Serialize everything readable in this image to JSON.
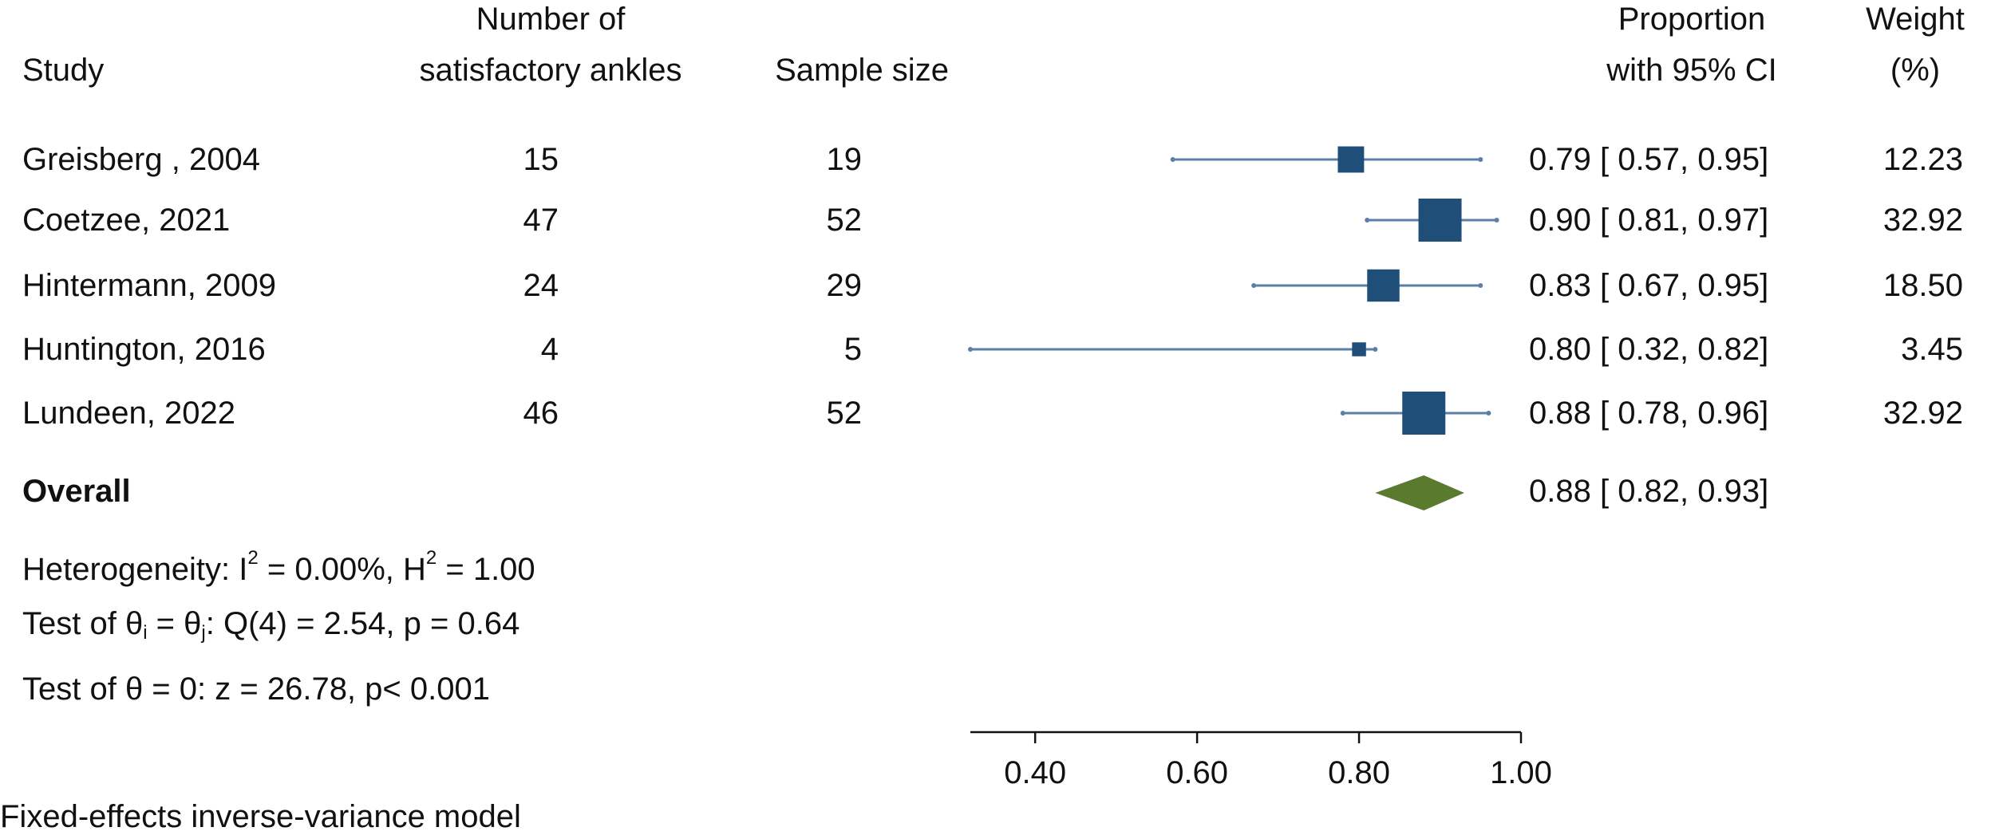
{
  "header": {
    "study": "Study",
    "number_line1": "Number of",
    "number_line2": "satisfactory ankles",
    "sample_size": "Sample size",
    "proportion_line1": "Proportion",
    "proportion_line2": "with 95% CI",
    "weight_line1": "Weight",
    "weight_line2": "(%)"
  },
  "rows": [
    {
      "study": "Greisberg , 2004",
      "n": "15",
      "sample": "19",
      "ci_text": "0.79 [ 0.57,  0.95]",
      "weight": "12.23"
    },
    {
      "study": "Coetzee, 2021",
      "n": "47",
      "sample": "52",
      "ci_text": "0.90 [ 0.81,  0.97]",
      "weight": "32.92"
    },
    {
      "study": "Hintermann, 2009",
      "n": "24",
      "sample": "29",
      "ci_text": "0.83 [ 0.67,  0.95]",
      "weight": "18.50"
    },
    {
      "study": "Huntington, 2016",
      "n": "4",
      "sample": "5",
      "ci_text": "0.80 [ 0.32,  0.82]",
      "weight": "3.45"
    },
    {
      "study": "Lundeen, 2022",
      "n": "46",
      "sample": "52",
      "ci_text": "0.88 [ 0.78,  0.96]",
      "weight": "32.92"
    }
  ],
  "overall": {
    "label": "Overall",
    "ci_text": "0.88 [ 0.82,  0.93]"
  },
  "stats": {
    "het_prefix": "Heterogeneity: I",
    "het_sup1": "2",
    "het_mid": " = 0.00%, H",
    "het_sup2": "2",
    "het_suffix": " = 1.00",
    "test1_prefix": "Test of θ",
    "test1_sub1": "i",
    "test1_mid": " = θ",
    "test1_sub2": "j",
    "test1_suffix": ": Q(4) = 2.54, p = 0.64",
    "test2": "Test of θ = 0: z = 26.78, p< 0.001"
  },
  "footer": "Fixed-effects inverse-variance model",
  "colors": {
    "marker": "#1f4e79",
    "ci_line": "#5b7fa6",
    "diamond": "#5a7a2e",
    "axis": "#111111"
  },
  "chart_data": {
    "type": "forest",
    "xlim": [
      0.32,
      1.0
    ],
    "xticks": [
      0.4,
      0.6,
      0.8,
      1.0
    ],
    "xticklabels": [
      "0.40",
      "0.60",
      "0.80",
      "1.00"
    ],
    "studies": [
      {
        "name": "Greisberg , 2004",
        "estimate": 0.79,
        "lower": 0.57,
        "upper": 0.95,
        "weight": 12.23
      },
      {
        "name": "Coetzee, 2021",
        "estimate": 0.9,
        "lower": 0.81,
        "upper": 0.97,
        "weight": 32.92
      },
      {
        "name": "Hintermann, 2009",
        "estimate": 0.83,
        "lower": 0.67,
        "upper": 0.95,
        "weight": 18.5
      },
      {
        "name": "Huntington, 2016",
        "estimate": 0.8,
        "lower": 0.32,
        "upper": 0.82,
        "weight": 3.45
      },
      {
        "name": "Lundeen, 2022",
        "estimate": 0.88,
        "lower": 0.78,
        "upper": 0.96,
        "weight": 32.92
      }
    ],
    "overall": {
      "estimate": 0.88,
      "lower": 0.82,
      "upper": 0.93
    }
  }
}
